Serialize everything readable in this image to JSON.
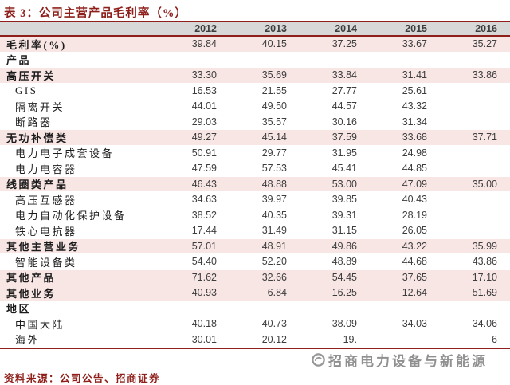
{
  "title": "表 3：公司主营产品毛利率（%）",
  "source_line": "资料来源：公司公告、招商证券",
  "watermark": {
    "text": "招商电力设备与新能源",
    "logo": "circle-swirl-logo"
  },
  "colors": {
    "maroon_accent": "#8e1f1a",
    "pink_row": "#f8e6e5",
    "header_gray": "#d8d8d8",
    "number_text": "#3d3d3d",
    "watermark_gray": "#7d7d7d"
  },
  "chart_data": {
    "type": "table",
    "title": "表 3：公司主营产品毛利率（%）",
    "columns": [
      "2012",
      "2013",
      "2014",
      "2015",
      "2016"
    ],
    "rows": [
      {
        "label": "毛利率(%)",
        "bold": true,
        "pink": true,
        "indent": false,
        "values": [
          "39.84",
          "40.15",
          "37.25",
          "33.67",
          "35.27"
        ]
      },
      {
        "label": "产品",
        "bold": true,
        "pink": false,
        "indent": false,
        "values": [
          "",
          "",
          "",
          "",
          ""
        ]
      },
      {
        "label": "高压开关",
        "bold": true,
        "pink": true,
        "indent": false,
        "values": [
          "33.30",
          "35.69",
          "33.84",
          "31.41",
          "33.86"
        ]
      },
      {
        "label": "GIS",
        "bold": false,
        "pink": false,
        "indent": true,
        "values": [
          "16.53",
          "21.55",
          "27.77",
          "25.61",
          ""
        ]
      },
      {
        "label": "隔离开关",
        "bold": false,
        "pink": false,
        "indent": true,
        "values": [
          "44.01",
          "49.50",
          "44.57",
          "43.32",
          ""
        ]
      },
      {
        "label": "断路器",
        "bold": false,
        "pink": false,
        "indent": true,
        "values": [
          "29.03",
          "35.57",
          "30.16",
          "31.34",
          ""
        ]
      },
      {
        "label": "无功补偿类",
        "bold": true,
        "pink": true,
        "indent": false,
        "values": [
          "49.27",
          "45.14",
          "37.59",
          "33.68",
          "37.71"
        ]
      },
      {
        "label": "电力电子成套设备",
        "bold": false,
        "pink": false,
        "indent": true,
        "values": [
          "50.91",
          "29.77",
          "31.95",
          "24.98",
          ""
        ]
      },
      {
        "label": "电力电容器",
        "bold": false,
        "pink": false,
        "indent": true,
        "values": [
          "47.59",
          "57.53",
          "45.41",
          "44.85",
          ""
        ]
      },
      {
        "label": "线圈类产品",
        "bold": true,
        "pink": true,
        "indent": false,
        "values": [
          "46.43",
          "48.88",
          "53.00",
          "47.09",
          "35.00"
        ]
      },
      {
        "label": "高压互感器",
        "bold": false,
        "pink": false,
        "indent": true,
        "values": [
          "34.63",
          "39.97",
          "39.85",
          "40.43",
          ""
        ]
      },
      {
        "label": "电力自动化保护设备",
        "bold": false,
        "pink": false,
        "indent": true,
        "values": [
          "38.52",
          "40.35",
          "39.31",
          "28.19",
          ""
        ]
      },
      {
        "label": "铁心电抗器",
        "bold": false,
        "pink": false,
        "indent": true,
        "values": [
          "17.44",
          "31.49",
          "31.15",
          "26.05",
          ""
        ]
      },
      {
        "label": "其他主营业务",
        "bold": true,
        "pink": true,
        "indent": false,
        "values": [
          "57.01",
          "48.91",
          "49.86",
          "43.22",
          "35.99"
        ]
      },
      {
        "label": "智能设备类",
        "bold": false,
        "pink": false,
        "indent": true,
        "values": [
          "54.40",
          "52.20",
          "48.89",
          "44.68",
          "43.86"
        ]
      },
      {
        "label": "其他产品",
        "bold": true,
        "pink": true,
        "indent": false,
        "values": [
          "71.62",
          "32.66",
          "54.45",
          "37.65",
          "17.10"
        ]
      },
      {
        "label": "其他业务",
        "bold": true,
        "pink": true,
        "indent": false,
        "values": [
          "40.93",
          "6.84",
          "16.25",
          "12.64",
          "51.69"
        ]
      },
      {
        "label": "地区",
        "bold": true,
        "pink": false,
        "indent": false,
        "values": [
          "",
          "",
          "",
          "",
          ""
        ]
      },
      {
        "label": "中国大陆",
        "bold": false,
        "pink": false,
        "indent": true,
        "values": [
          "40.18",
          "40.73",
          "38.09",
          "34.03",
          "34.06"
        ]
      },
      {
        "label": "海外",
        "bold": false,
        "pink": false,
        "indent": true,
        "values": [
          "30.01",
          "20.12",
          "19.",
          "",
          "6"
        ]
      }
    ]
  }
}
